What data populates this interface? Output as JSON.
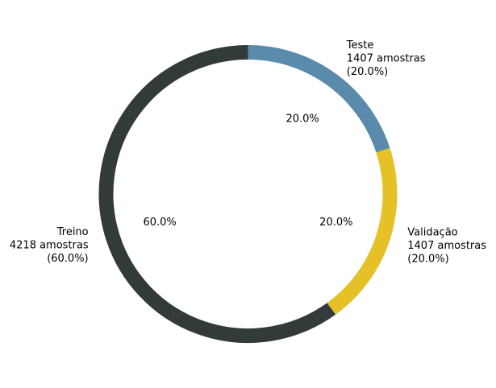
{
  "chart_data": {
    "type": "pie",
    "variant": "donut",
    "title": "",
    "slices": [
      {
        "name": "Teste",
        "value": 1407,
        "count_label": "1407 amostras",
        "percent_label": "(20.0%)",
        "inner_label": "20.0%",
        "color": "#5b8bac"
      },
      {
        "name": "Validação",
        "value": 1407,
        "count_label": "1407 amostras",
        "percent_label": "(20.0%)",
        "inner_label": "20.0%",
        "color": "#e5c027"
      },
      {
        "name": "Treino",
        "value": 4218,
        "count_label": "4218 amostras",
        "percent_label": "(60.0%)",
        "inner_label": "60.0%",
        "color": "#333a3a"
      }
    ],
    "start_angle_deg": 90,
    "direction": "clockwise"
  }
}
